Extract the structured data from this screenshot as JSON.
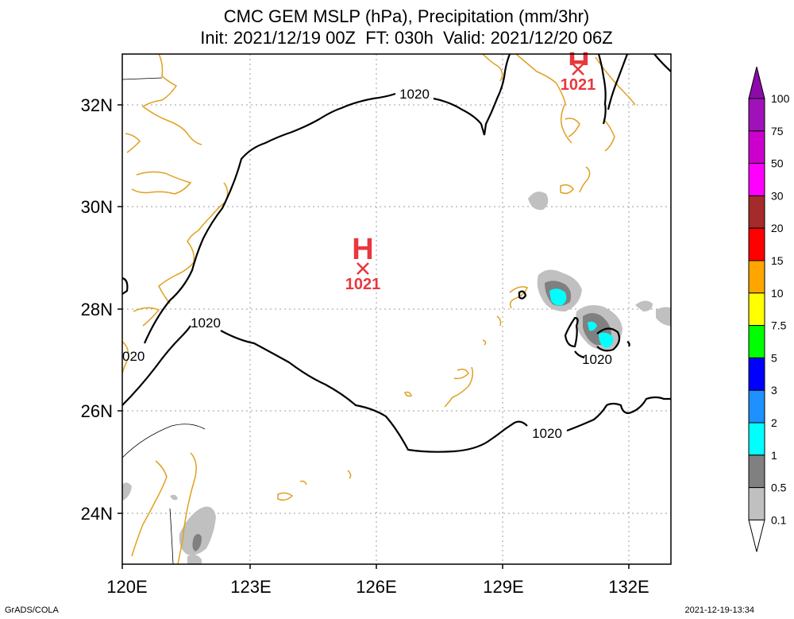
{
  "title_line1": "CMC GEM MSLP (hPa), Precipitation (mm/3hr)",
  "title_line2": "Init: 2021/12/19 00Z  FT: 030h  Valid: 2021/12/20 06Z",
  "credit_left": "GrADS/COLA",
  "credit_right": "2021-12-19-13:34",
  "x_ticks": [
    "120E",
    "123E",
    "126E",
    "129E",
    "132E"
  ],
  "y_ticks": [
    "32N",
    "30N",
    "28N",
    "26N",
    "24N"
  ],
  "contour_labels": [
    "1020",
    "1020",
    "1020",
    "1020",
    "020"
  ],
  "highs": [
    {
      "symbol": "H",
      "value": "1021"
    },
    {
      "symbol": "H",
      "value": "1021"
    }
  ],
  "colorbar": {
    "labels": [
      "100",
      "75",
      "50",
      "30",
      "20",
      "15",
      "10",
      "7.5",
      "5",
      "3",
      "2",
      "1",
      "0.5",
      "0.1"
    ],
    "colors": [
      "#8b0aa8",
      "#a012b9",
      "#cc00cc",
      "#ff00ff",
      "#a52a2a",
      "#ff0000",
      "#ffa500",
      "#ffff00",
      "#00ff00",
      "#0000ff",
      "#1e90ff",
      "#00ffff",
      "#808080",
      "#c0c0c0",
      "#ffffff"
    ]
  },
  "colors": {
    "coastline": "#e0a020",
    "isobar": "#000000",
    "high_marker": "#e8383d",
    "grid": "#9e9e9e"
  }
}
